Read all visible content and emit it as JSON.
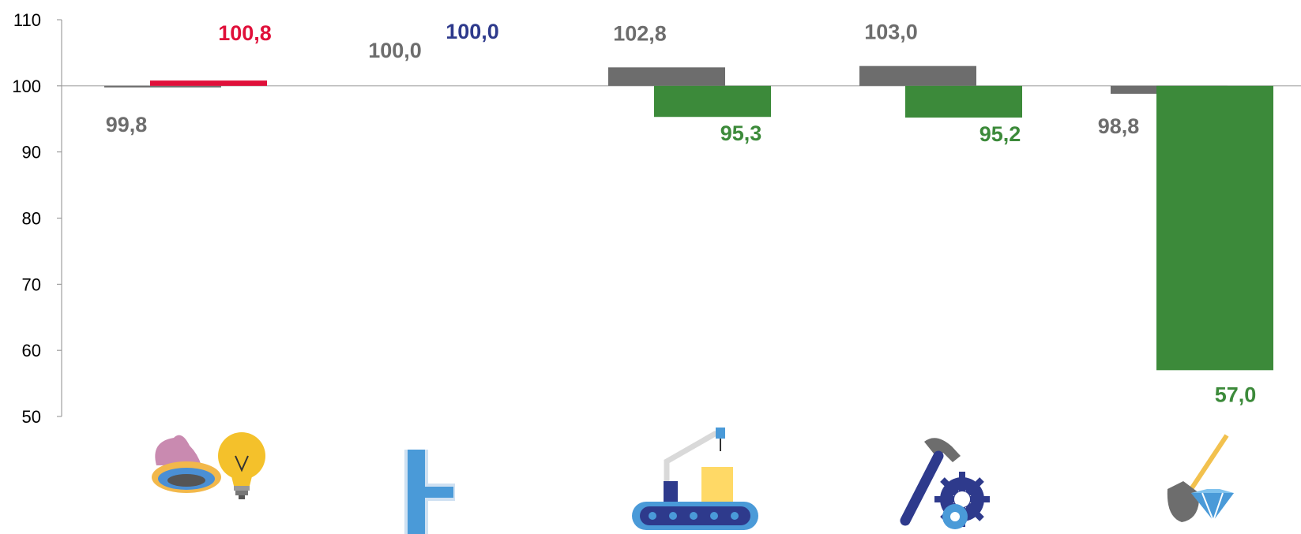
{
  "chart_data": {
    "type": "bar",
    "categories": [
      "electricity-gas",
      "water-supply",
      "manufacturing",
      "processing-industry",
      "mining"
    ],
    "ylim": [
      50,
      110
    ],
    "yticks": [
      110,
      100,
      90,
      80,
      70,
      60,
      50
    ],
    "baseline": 100,
    "series": [
      {
        "values": [
          99.8,
          100.0,
          102.8,
          103.0,
          98.8
        ],
        "labels": [
          "99,8",
          "100,0",
          "102,8",
          "103,0",
          "98,8"
        ],
        "color": "#6d6d6d"
      },
      {
        "values": [
          100.8,
          100.0,
          95.3,
          95.2,
          57.0
        ],
        "labels": [
          "100,8",
          "100,0",
          "95,3",
          "95,2",
          "57,0"
        ],
        "colors": [
          "#e0103a",
          "#2e3a8c",
          "#3c8a3a",
          "#3c8a3a",
          "#3c8a3a"
        ]
      }
    ],
    "grid": false,
    "legend": "none"
  },
  "icons": [
    "gas-burner-lightbulb-icon",
    "water-pipe-icon",
    "conveyor-robot-arm-icon",
    "hammer-gear-icon",
    "shovel-diamond-icon"
  ]
}
